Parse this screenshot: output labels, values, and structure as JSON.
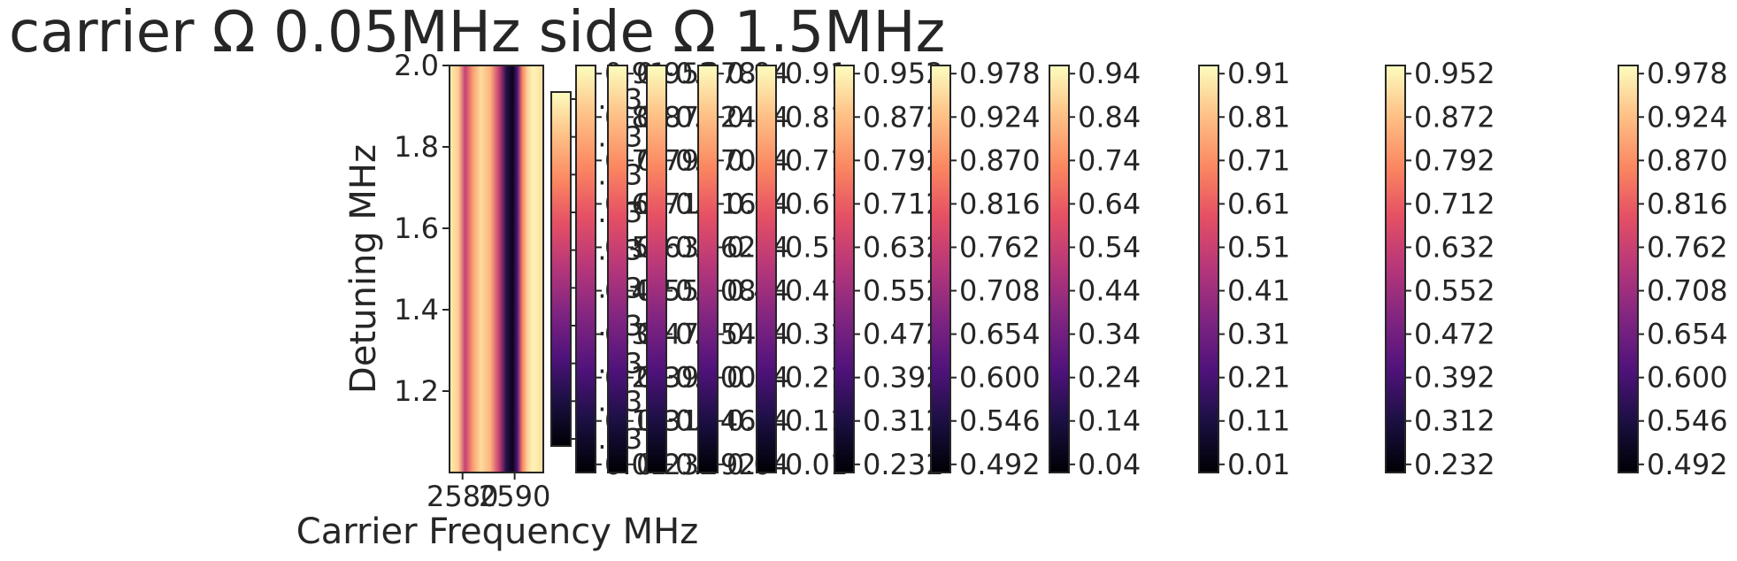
{
  "chart_data": {
    "type": "heatmap",
    "title": "carrier Ω 0.05MHz side Ω 1.5MHz",
    "xlabel": "Carrier Frequency MHz",
    "ylabel": "Detuning MHz",
    "colormap": "magma",
    "x_tick_labels": [
      "2580",
      "2590"
    ],
    "y_tick_labels": [
      "2.0",
      "1.8",
      "1.6",
      "1.4",
      "1.2"
    ],
    "y_ticks": [
      2.0,
      1.8,
      1.6,
      1.4,
      1.2
    ],
    "ylim": [
      1.0,
      2.0
    ],
    "xlim": [
      2577.5,
      2595.5
    ],
    "x_ticks": [
      2580,
      2590
    ],
    "heatmap_column_profile": {
      "x": [
        2577.5,
        2579.2,
        2580.5,
        2582.0,
        2583.5,
        2585.3,
        2587.0,
        2588.4,
        2589.6,
        2590.5,
        2591.5,
        2592.5,
        2593.5,
        2594.5,
        2595.5
      ],
      "value": [
        0.97,
        0.9,
        0.55,
        0.8,
        0.93,
        0.85,
        0.55,
        0.15,
        0.04,
        0.25,
        0.75,
        0.92,
        0.98,
        0.96,
        0.93
      ]
    },
    "colorbars": [
      {
        "ticks": [
          "0.93",
          "0.83",
          "0.73",
          "0.63",
          "0.53",
          "0.43",
          "0.33",
          "0.23",
          "0.13",
          "0.03"
        ]
      },
      {
        "ticks": [
          "0.91",
          "0.81",
          "0.71",
          "0.61",
          "0.51",
          "0.41",
          "0.31",
          "0.21",
          "0.11",
          "0.01"
        ]
      },
      {
        "ticks": [
          "0.952",
          "0.872",
          "0.792",
          "0.712",
          "0.632",
          "0.552",
          "0.472",
          "0.392",
          "0.312",
          "0.232"
        ]
      },
      {
        "ticks": [
          "0.978",
          "0.924",
          "0.870",
          "0.816",
          "0.762",
          "0.708",
          "0.654",
          "0.600",
          "0.546",
          "0.492"
        ]
      },
      {
        "ticks": [
          "0.94",
          "0.84",
          "0.74",
          "0.64",
          "0.54",
          "0.44",
          "0.34",
          "0.24",
          "0.14",
          "0.04"
        ]
      },
      {
        "ticks": [
          "0.91",
          "0.81",
          "0.71",
          "0.61",
          "0.51",
          "0.41",
          "0.31",
          "0.21",
          "0.11",
          "0.01"
        ]
      },
      {
        "ticks": [
          "0.952",
          "0.872",
          "0.792",
          "0.712",
          "0.632",
          "0.552",
          "0.472",
          "0.392",
          "0.312",
          "0.232"
        ]
      },
      {
        "ticks": [
          "0.978",
          "0.924",
          "0.870",
          "0.816",
          "0.762",
          "0.708",
          "0.654",
          "0.600",
          "0.546",
          "0.492"
        ]
      },
      {
        "ticks": [
          "0.94",
          "0.84",
          "0.74",
          "0.64",
          "0.54",
          "0.44",
          "0.34",
          "0.24",
          "0.14",
          "0.04"
        ]
      },
      {
        "ticks": [
          "0.91",
          "0.81",
          "0.71",
          "0.61",
          "0.51",
          "0.41",
          "0.31",
          "0.21",
          "0.11",
          "0.01"
        ]
      },
      {
        "ticks": [
          "0.952",
          "0.872",
          "0.792",
          "0.712",
          "0.632",
          "0.552",
          "0.472",
          "0.392",
          "0.312",
          "0.232"
        ]
      },
      {
        "ticks": [
          "0.978",
          "0.924",
          "0.870",
          "0.816",
          "0.762",
          "0.708",
          "0.654",
          "0.600",
          "0.546",
          "0.492"
        ]
      }
    ]
  }
}
